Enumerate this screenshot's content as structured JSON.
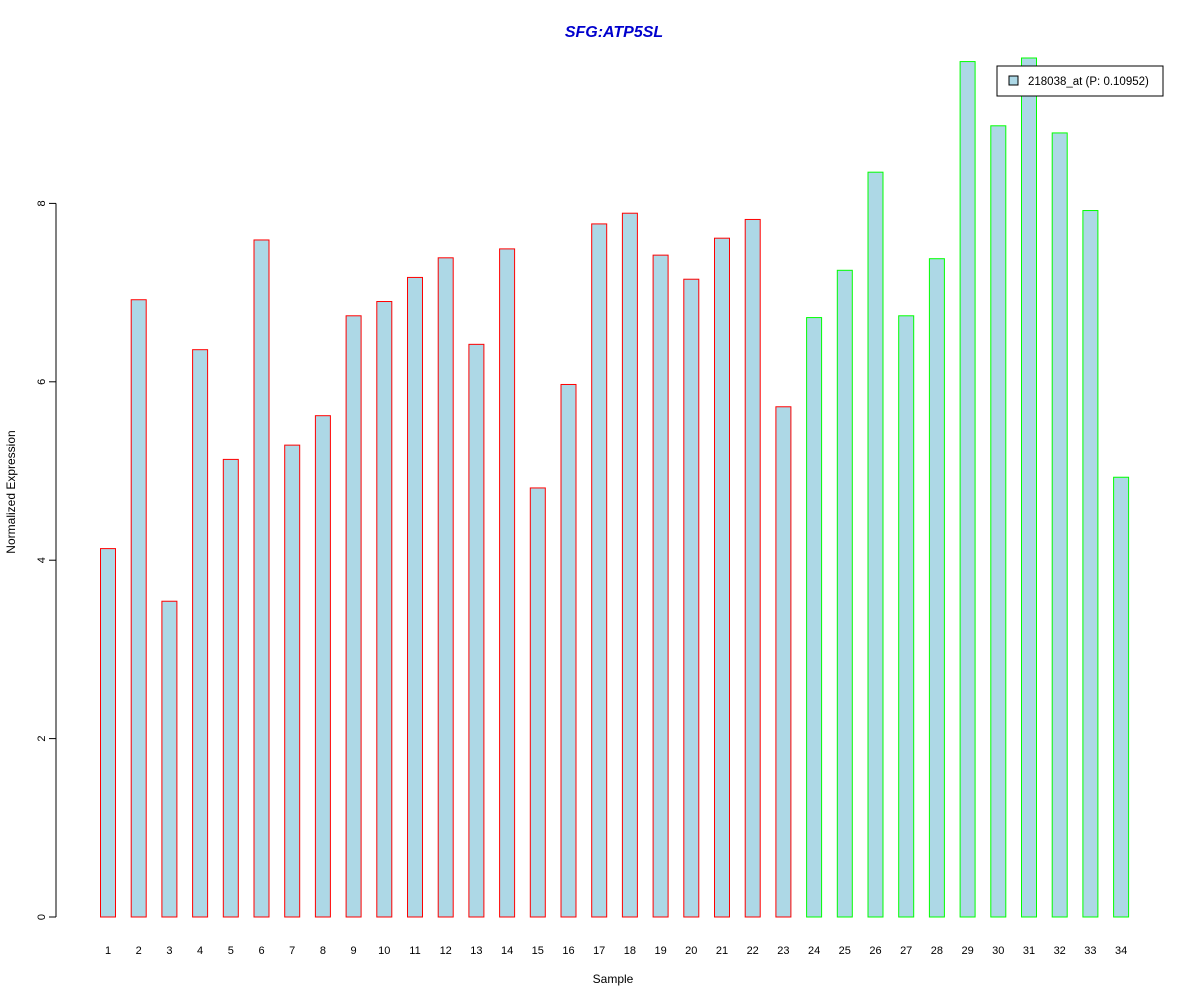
{
  "chart_data": {
    "type": "bar",
    "title": "SFG:ATP5SL",
    "xlabel": "Sample",
    "ylabel": "Normalized Expression",
    "ylim": [
      0,
      9.6
    ],
    "yticks": [
      "0",
      "2",
      "4",
      "6",
      "8"
    ],
    "categories": [
      "1",
      "2",
      "3",
      "4",
      "5",
      "6",
      "7",
      "8",
      "9",
      "10",
      "11",
      "12",
      "13",
      "14",
      "15",
      "16",
      "17",
      "18",
      "19",
      "20",
      "21",
      "22",
      "23",
      "24",
      "25",
      "26",
      "27",
      "28",
      "29",
      "30",
      "31",
      "32",
      "33",
      "34"
    ],
    "series": [
      {
        "name": "218038_at (P: 0.10952)",
        "values": [
          4.13,
          6.92,
          3.54,
          6.36,
          5.13,
          7.59,
          5.29,
          5.62,
          6.74,
          6.9,
          7.17,
          7.39,
          6.42,
          7.49,
          4.81,
          5.97,
          7.77,
          7.89,
          7.42,
          7.15,
          7.61,
          7.82,
          5.72,
          6.72,
          7.25,
          8.35,
          6.74,
          7.38,
          9.59,
          8.87,
          9.63,
          8.79,
          7.92,
          4.93
        ]
      }
    ],
    "groups": [
      1,
      1,
      1,
      1,
      1,
      1,
      1,
      1,
      1,
      1,
      1,
      1,
      1,
      1,
      1,
      1,
      1,
      1,
      1,
      1,
      1,
      1,
      1,
      2,
      2,
      2,
      2,
      2,
      2,
      2,
      2,
      2,
      2,
      2
    ],
    "colors": {
      "bar_fill": "#add8e6",
      "group1_border": "#ff0000",
      "group2_border": "#00ff00",
      "title": "#0000cd"
    },
    "grid": false,
    "legend_position": "top-right"
  }
}
